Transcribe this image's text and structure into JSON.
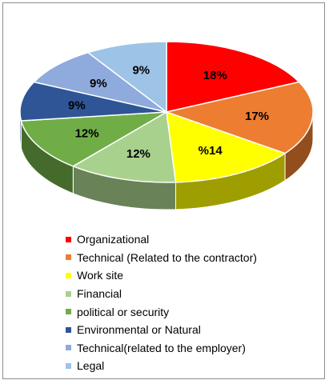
{
  "chart_data": {
    "type": "pie",
    "title": "",
    "slices": [
      {
        "label": "Organizational",
        "value": 18,
        "display": "18%",
        "color": "#ff0000"
      },
      {
        "label": "Technical (Related to the contractor)",
        "value": 17,
        "display": "17%",
        "color": "#ed7d31"
      },
      {
        "label": "Work site",
        "value": 14,
        "display": "%14",
        "color": "#ffff00"
      },
      {
        "label": "Financial",
        "value": 12,
        "display": "12%",
        "color": "#a9d18e"
      },
      {
        "label": "political or security",
        "value": 12,
        "display": "12%",
        "color": "#70ad47"
      },
      {
        "label": "Environmental or Natural",
        "value": 9,
        "display": "9%",
        "color": "#2f5597"
      },
      {
        "label": "Technical(related to the employer)",
        "value": 9,
        "display": "9%",
        "color": "#8faadc"
      },
      {
        "label": "Legal",
        "value": 9,
        "display": "9%",
        "color": "#9dc3e6"
      }
    ],
    "style": "3d",
    "legend_position": "bottom"
  }
}
